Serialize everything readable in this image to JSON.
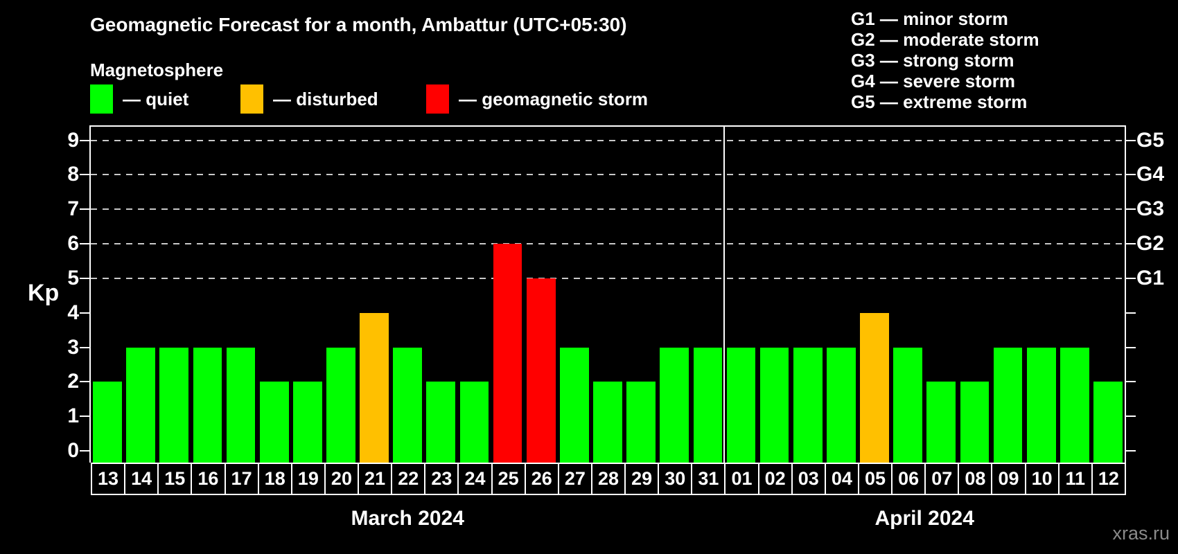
{
  "title": "Geomagnetic Forecast for a month, Ambattur (UTC+05:30)",
  "subtitle": "Magnetosphere",
  "legend": {
    "items": [
      {
        "name": "quiet",
        "label": "— quiet",
        "color": "#00ff00"
      },
      {
        "name": "disturbed",
        "label": "— disturbed",
        "color": "#ffc000"
      },
      {
        "name": "storm",
        "label": "— geomagnetic storm",
        "color": "#ff0000"
      }
    ]
  },
  "storm_scale_legend": [
    "G1 — minor storm",
    "G2 — moderate storm",
    "G3 — strong storm",
    "G4 — severe storm",
    "G5 — extreme storm"
  ],
  "watermark": "xras.ru",
  "chart_data": {
    "type": "bar",
    "ylabel": "Kp",
    "ylim": [
      0,
      9
    ],
    "y_ticks": [
      0,
      1,
      2,
      3,
      4,
      5,
      6,
      7,
      8,
      9
    ],
    "gridline_levels": [
      5,
      6,
      7,
      8,
      9
    ],
    "grid": "dashed horizontal at G-storm levels only",
    "legend_position": "top",
    "right_axis": [
      {
        "label": "G1",
        "kp": 5
      },
      {
        "label": "G2",
        "kp": 6
      },
      {
        "label": "G3",
        "kp": 7
      },
      {
        "label": "G4",
        "kp": 8
      },
      {
        "label": "G5",
        "kp": 9
      }
    ],
    "status_colors": {
      "quiet": "#00ff00",
      "disturbed": "#ffc000",
      "storm": "#ff0000"
    },
    "months": [
      {
        "label": "March 2024",
        "days": [
          {
            "day": "13",
            "kp": 2,
            "status": "quiet"
          },
          {
            "day": "14",
            "kp": 3,
            "status": "quiet"
          },
          {
            "day": "15",
            "kp": 3,
            "status": "quiet"
          },
          {
            "day": "16",
            "kp": 3,
            "status": "quiet"
          },
          {
            "day": "17",
            "kp": 3,
            "status": "quiet"
          },
          {
            "day": "18",
            "kp": 2,
            "status": "quiet"
          },
          {
            "day": "19",
            "kp": 2,
            "status": "quiet"
          },
          {
            "day": "20",
            "kp": 3,
            "status": "quiet"
          },
          {
            "day": "21",
            "kp": 4,
            "status": "disturbed"
          },
          {
            "day": "22",
            "kp": 3,
            "status": "quiet"
          },
          {
            "day": "23",
            "kp": 2,
            "status": "quiet"
          },
          {
            "day": "24",
            "kp": 2,
            "status": "quiet"
          },
          {
            "day": "25",
            "kp": 6,
            "status": "storm"
          },
          {
            "day": "26",
            "kp": 5,
            "status": "storm"
          },
          {
            "day": "27",
            "kp": 3,
            "status": "quiet"
          },
          {
            "day": "28",
            "kp": 2,
            "status": "quiet"
          },
          {
            "day": "29",
            "kp": 2,
            "status": "quiet"
          },
          {
            "day": "30",
            "kp": 3,
            "status": "quiet"
          },
          {
            "day": "31",
            "kp": 3,
            "status": "quiet"
          }
        ]
      },
      {
        "label": "April 2024",
        "days": [
          {
            "day": "01",
            "kp": 3,
            "status": "quiet"
          },
          {
            "day": "02",
            "kp": 3,
            "status": "quiet"
          },
          {
            "day": "03",
            "kp": 3,
            "status": "quiet"
          },
          {
            "day": "04",
            "kp": 3,
            "status": "quiet"
          },
          {
            "day": "05",
            "kp": 4,
            "status": "disturbed"
          },
          {
            "day": "06",
            "kp": 3,
            "status": "quiet"
          },
          {
            "day": "07",
            "kp": 2,
            "status": "quiet"
          },
          {
            "day": "08",
            "kp": 2,
            "status": "quiet"
          },
          {
            "day": "09",
            "kp": 3,
            "status": "quiet"
          },
          {
            "day": "10",
            "kp": 3,
            "status": "quiet"
          },
          {
            "day": "11",
            "kp": 3,
            "status": "quiet"
          },
          {
            "day": "12",
            "kp": 2,
            "status": "quiet"
          }
        ]
      }
    ]
  }
}
